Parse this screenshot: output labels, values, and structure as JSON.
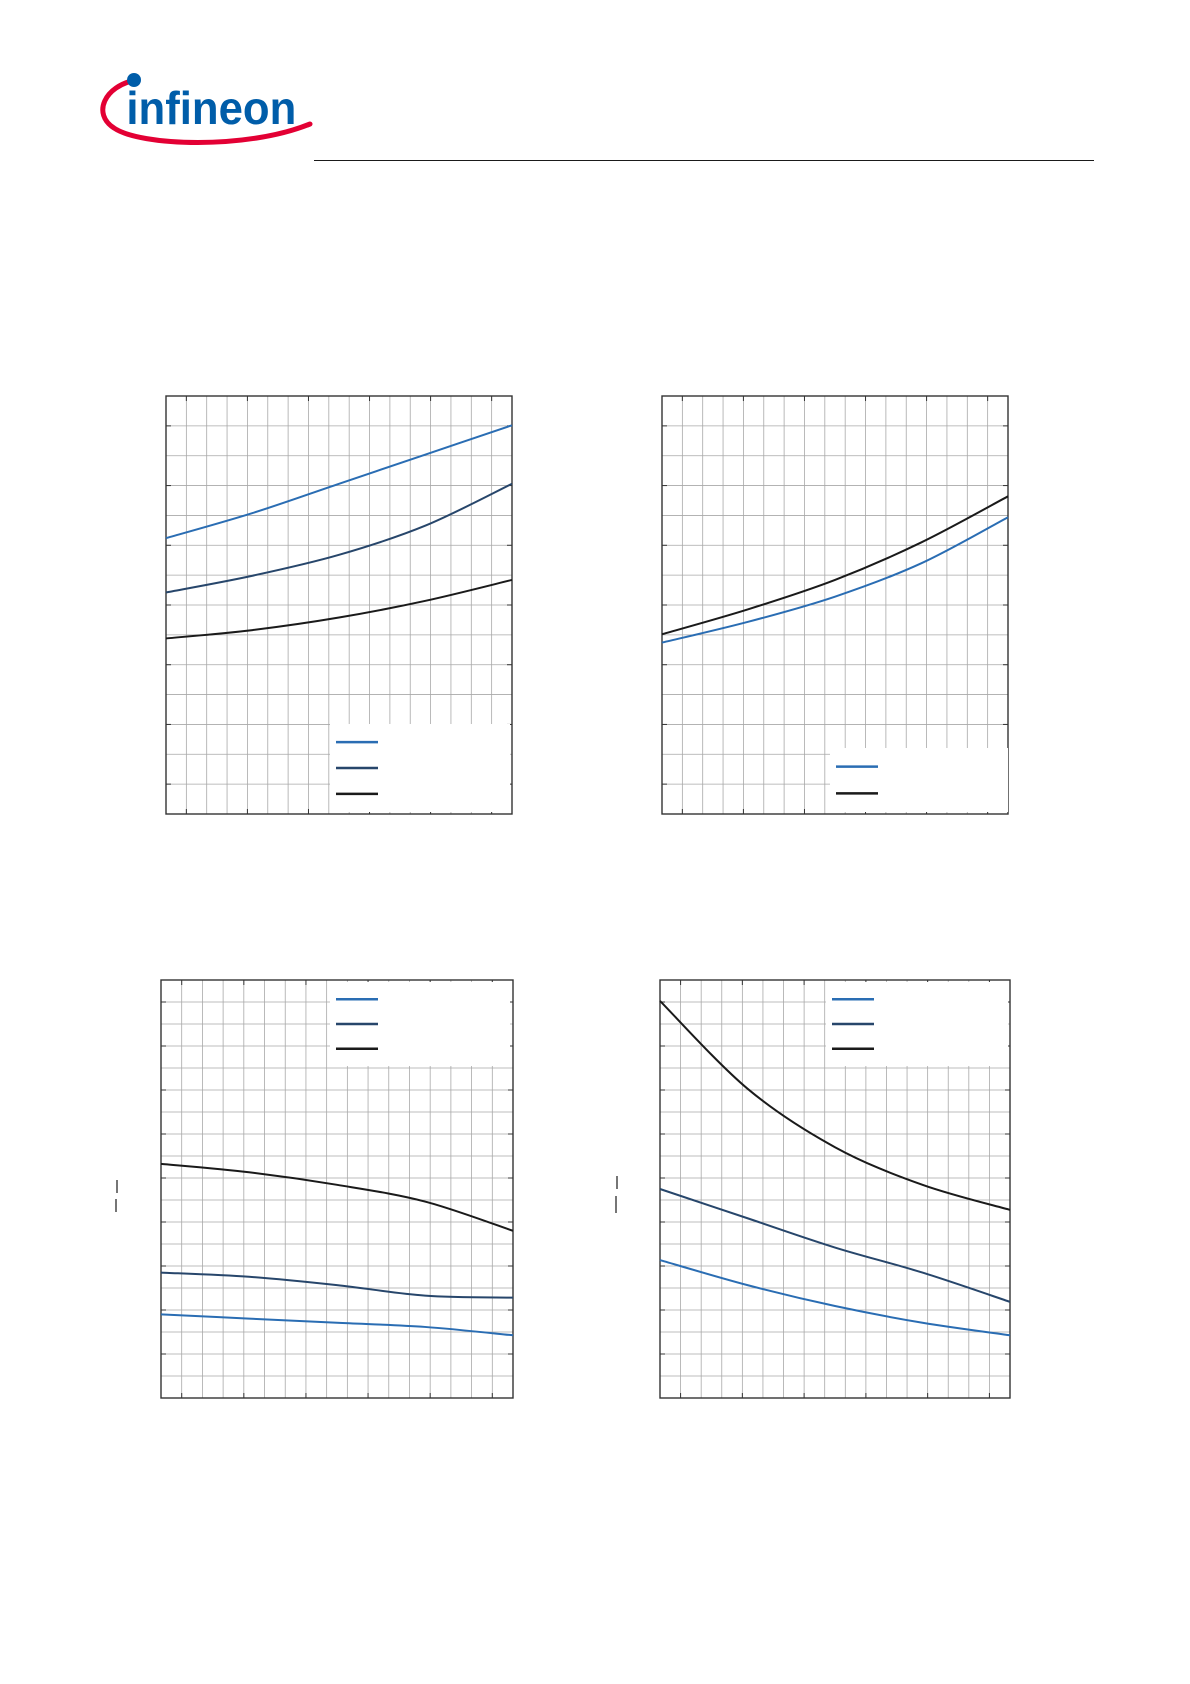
{
  "header": {
    "logo_text": "infineon",
    "brand_red": "#e30034",
    "brand_blue": "#005da9"
  },
  "colors": {
    "blue": "#2a6db3",
    "navy": "#27466b",
    "black": "#1a1a1a",
    "grid": "#a8a8a8",
    "frame": "#333333"
  },
  "chart_data": [
    {
      "type": "line",
      "grid": true,
      "legend_entries": 3,
      "legend_position": "bottom-right",
      "xlim": [
        0,
        1
      ],
      "ylim": [
        0,
        1
      ],
      "series": [
        {
          "color": "blue",
          "x": [
            0,
            0.25,
            0.5,
            0.75,
            1
          ],
          "y": [
            0.66,
            0.72,
            0.79,
            0.86,
            0.93
          ]
        },
        {
          "color": "navy",
          "x": [
            0,
            0.25,
            0.5,
            0.75,
            1
          ],
          "y": [
            0.53,
            0.57,
            0.62,
            0.69,
            0.79
          ]
        },
        {
          "color": "black",
          "x": [
            0,
            0.25,
            0.5,
            0.75,
            1
          ],
          "y": [
            0.42,
            0.44,
            0.47,
            0.51,
            0.56
          ]
        }
      ]
    },
    {
      "type": "line",
      "grid": true,
      "legend_entries": 2,
      "legend_position": "bottom-right",
      "xlim": [
        0,
        1
      ],
      "ylim": [
        0,
        1
      ],
      "series": [
        {
          "color": "blue",
          "x": [
            0,
            0.25,
            0.5,
            0.75,
            1
          ],
          "y": [
            0.41,
            0.46,
            0.52,
            0.6,
            0.71
          ]
        },
        {
          "color": "black",
          "x": [
            0,
            0.25,
            0.5,
            0.75,
            1
          ],
          "y": [
            0.43,
            0.49,
            0.56,
            0.65,
            0.76
          ]
        }
      ]
    },
    {
      "type": "line",
      "grid": true,
      "legend_entries": 3,
      "legend_position": "top-right",
      "xlim": [
        0,
        1
      ],
      "ylim": [
        0,
        1
      ],
      "series": [
        {
          "color": "blue",
          "x": [
            0,
            0.25,
            0.5,
            0.75,
            1
          ],
          "y": [
            0.2,
            0.19,
            0.18,
            0.17,
            0.15
          ]
        },
        {
          "color": "navy",
          "x": [
            0,
            0.25,
            0.5,
            0.75,
            1
          ],
          "y": [
            0.3,
            0.29,
            0.27,
            0.245,
            0.24
          ]
        },
        {
          "color": "black",
          "x": [
            0,
            0.25,
            0.5,
            0.75,
            1
          ],
          "y": [
            0.56,
            0.54,
            0.51,
            0.47,
            0.4
          ]
        }
      ]
    },
    {
      "type": "line",
      "grid": true,
      "legend_entries": 3,
      "legend_position": "top-right",
      "xlim": [
        0,
        1
      ],
      "ylim": [
        0,
        1
      ],
      "series": [
        {
          "color": "blue",
          "x": [
            0,
            0.25,
            0.5,
            0.75,
            1
          ],
          "y": [
            0.33,
            0.27,
            0.22,
            0.18,
            0.15
          ]
        },
        {
          "color": "navy",
          "x": [
            0,
            0.25,
            0.5,
            0.75,
            1
          ],
          "y": [
            0.5,
            0.43,
            0.36,
            0.3,
            0.23
          ]
        },
        {
          "color": "black",
          "x": [
            0,
            0.25,
            0.5,
            0.75,
            1
          ],
          "y": [
            0.95,
            0.74,
            0.6,
            0.51,
            0.45
          ]
        }
      ]
    }
  ]
}
